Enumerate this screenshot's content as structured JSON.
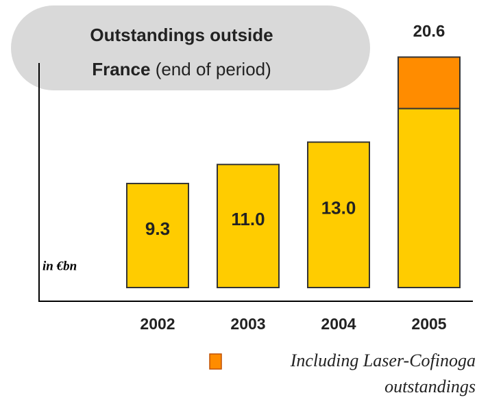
{
  "chart_data": {
    "type": "stacked_bar",
    "title": "Outstandings outside France",
    "subtitle": "(end of period)",
    "unit_label": "in €bn",
    "categories": [
      "2002",
      "2003",
      "2004",
      "2005"
    ],
    "series": [
      {
        "color": "#ffcc00",
        "values": [
          9.3,
          11.0,
          13.0,
          16.0
        ],
        "value_labels": [
          "9.3",
          "11.0",
          "13.0",
          null
        ]
      },
      {
        "name": "Including Laser-Cofinoga outstandings",
        "color": "#ff8c00",
        "values": [
          null,
          null,
          null,
          4.6
        ]
      }
    ],
    "total_labels": [
      null,
      null,
      null,
      "20.6"
    ],
    "ylim": [
      0,
      25
    ]
  }
}
